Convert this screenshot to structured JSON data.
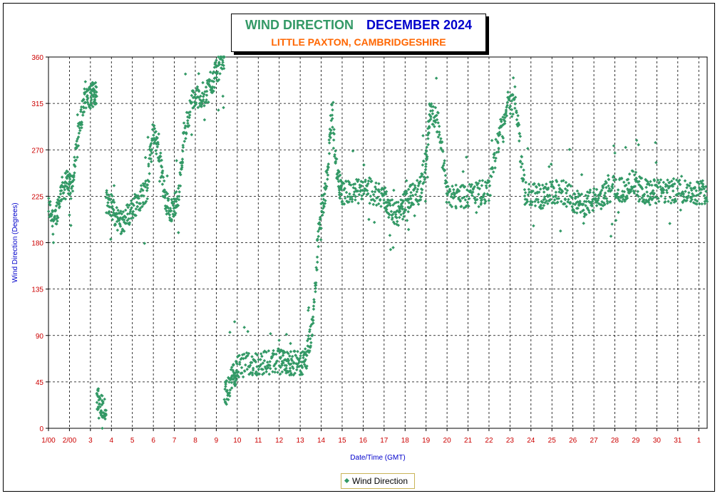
{
  "title": {
    "main": "WIND DIRECTION",
    "period": "DECEMBER  2024",
    "subtitle": "LITTLE PAXTON, CAMBRIDGESHIRE"
  },
  "colors": {
    "series": "#339966",
    "title_main": "#339966",
    "title_period": "#0000cc",
    "subtitle": "#ff6600",
    "ticks": "#cc0000",
    "axis_label": "#0000cc"
  },
  "legend": {
    "label": "Wind Direction",
    "placement": "bottom-center"
  },
  "chart_data": {
    "type": "scatter",
    "xlabel": "Date/Time (GMT)",
    "ylabel": "Wind Direction (Degrees)",
    "ylim": [
      0,
      360
    ],
    "xlim": [
      1,
      32.4
    ],
    "grid": true,
    "y_ticks": [
      "0",
      "45",
      "90",
      "135",
      "180",
      "225",
      "270",
      "315",
      "360"
    ],
    "x_ticks": [
      "1/00",
      "2/00",
      "3",
      "4",
      "5",
      "6",
      "7",
      "8",
      "9",
      "10",
      "11",
      "12",
      "13",
      "14",
      "15",
      "16",
      "17",
      "18",
      "19",
      "20",
      "21",
      "22",
      "23",
      "24",
      "25",
      "26",
      "27",
      "28",
      "29",
      "30",
      "31",
      "1"
    ],
    "series": [
      {
        "name": "Wind Direction",
        "marker": "diamond",
        "approx_trend": [
          [
            1.0,
            215
          ],
          [
            1.3,
            200
          ],
          [
            1.6,
            230
          ],
          [
            1.9,
            240
          ],
          [
            2.1,
            232
          ],
          [
            2.4,
            280
          ],
          [
            2.7,
            318
          ],
          [
            3.0,
            322
          ],
          [
            3.2,
            325
          ],
          [
            3.4,
            30
          ],
          [
            3.6,
            20
          ],
          [
            3.9,
            220
          ],
          [
            4.2,
            205
          ],
          [
            4.5,
            200
          ],
          [
            4.9,
            210
          ],
          [
            5.3,
            222
          ],
          [
            5.7,
            232
          ],
          [
            6.0,
            290
          ],
          [
            6.3,
            262
          ],
          [
            6.6,
            218
          ],
          [
            6.9,
            210
          ],
          [
            7.2,
            228
          ],
          [
            7.5,
            290
          ],
          [
            7.9,
            320
          ],
          [
            8.3,
            322
          ],
          [
            8.7,
            330
          ],
          [
            9.0,
            345
          ],
          [
            9.3,
            358
          ],
          [
            9.5,
            35
          ],
          [
            9.8,
            50
          ],
          [
            10.0,
            58
          ],
          [
            10.5,
            62
          ],
          [
            11.0,
            63
          ],
          [
            11.5,
            64
          ],
          [
            12.0,
            66
          ],
          [
            12.3,
            62
          ],
          [
            12.6,
            64
          ],
          [
            13.0,
            62
          ],
          [
            13.3,
            68
          ],
          [
            13.6,
            100
          ],
          [
            13.9,
            200
          ],
          [
            14.2,
            228
          ],
          [
            14.5,
            305
          ],
          [
            14.8,
            240
          ],
          [
            15.0,
            228
          ],
          [
            15.5,
            229
          ],
          [
            16.0,
            230
          ],
          [
            16.5,
            228
          ],
          [
            17.0,
            225
          ],
          [
            17.3,
            212
          ],
          [
            17.7,
            208
          ],
          [
            18.0,
            218
          ],
          [
            18.3,
            225
          ],
          [
            18.7,
            230
          ],
          [
            19.0,
            260
          ],
          [
            19.2,
            310
          ],
          [
            19.6,
            295
          ],
          [
            20.0,
            228
          ],
          [
            20.5,
            225
          ],
          [
            21.0,
            226
          ],
          [
            21.5,
            228
          ],
          [
            22.0,
            230
          ],
          [
            22.5,
            285
          ],
          [
            22.9,
            315
          ],
          [
            23.3,
            312
          ],
          [
            23.7,
            228
          ],
          [
            24.2,
            226
          ],
          [
            24.6,
            224
          ],
          [
            25.0,
            228
          ],
          [
            25.5,
            230
          ],
          [
            26.0,
            222
          ],
          [
            26.4,
            215
          ],
          [
            26.8,
            220
          ],
          [
            27.2,
            222
          ],
          [
            27.6,
            228
          ],
          [
            28.0,
            235
          ],
          [
            28.4,
            230
          ],
          [
            28.8,
            240
          ],
          [
            29.2,
            232
          ],
          [
            29.6,
            228
          ],
          [
            30.0,
            230
          ],
          [
            30.5,
            229
          ],
          [
            31.0,
            231
          ],
          [
            31.5,
            230
          ],
          [
            32.0,
            229
          ],
          [
            32.4,
            230
          ]
        ]
      }
    ]
  }
}
